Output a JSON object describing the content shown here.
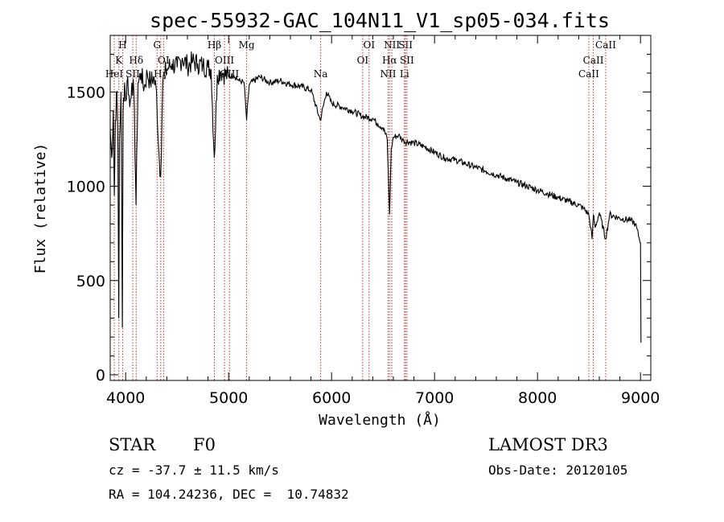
{
  "chart_data": {
    "type": "line",
    "title": "spec-55932-GAC_104N11_V1_sp05-034.fits",
    "xlabel": "Wavelength (Å)",
    "ylabel": "Flux (relative)",
    "xlim": [
      3850,
      9100
    ],
    "ylim": [
      -30,
      1800
    ],
    "x_ticks": [
      4000,
      5000,
      6000,
      7000,
      8000,
      9000
    ],
    "y_ticks": [
      0,
      500,
      1000,
      1500
    ],
    "series": [
      {
        "name": "flux",
        "x": [
          3850,
          3865,
          3880,
          3890,
          3900,
          3915,
          3925,
          3933,
          3940,
          3955,
          3968,
          3975,
          3990,
          4000,
          4020,
          4040,
          4060,
          4080,
          4101,
          4120,
          4150,
          4180,
          4210,
          4240,
          4270,
          4300,
          4320,
          4340,
          4360,
          4380,
          4400,
          4450,
          4500,
          4550,
          4600,
          4650,
          4700,
          4750,
          4800,
          4830,
          4861,
          4890,
          4920,
          4950,
          5000,
          5050,
          5100,
          5150,
          5175,
          5200,
          5300,
          5400,
          5500,
          5600,
          5700,
          5800,
          5890,
          5950,
          6000,
          6100,
          6200,
          6300,
          6400,
          6450,
          6500,
          6540,
          6563,
          6580,
          6600,
          6650,
          6700,
          6800,
          6900,
          7000,
          7100,
          7200,
          7300,
          7400,
          7500,
          7600,
          7700,
          7800,
          7900,
          8000,
          8100,
          8200,
          8300,
          8400,
          8450,
          8498,
          8530,
          8542,
          8560,
          8600,
          8662,
          8700,
          8800,
          8900,
          8950,
          9000,
          9005
        ],
        "y": [
          1300,
          1150,
          1400,
          950,
          1350,
          1500,
          1200,
          300,
          1250,
          1500,
          250,
          1400,
          1550,
          1450,
          1580,
          1420,
          1550,
          1500,
          900,
          1550,
          1600,
          1520,
          1600,
          1550,
          1580,
          1500,
          1200,
          1050,
          1550,
          1600,
          1620,
          1650,
          1630,
          1680,
          1640,
          1660,
          1650,
          1640,
          1630,
          1620,
          1150,
          1590,
          1610,
          1600,
          1580,
          1590,
          1560,
          1550,
          1350,
          1540,
          1580,
          1550,
          1560,
          1540,
          1530,
          1510,
          1350,
          1500,
          1440,
          1420,
          1400,
          1370,
          1360,
          1330,
          1310,
          1250,
          850,
          1200,
          1260,
          1270,
          1240,
          1230,
          1210,
          1180,
          1150,
          1140,
          1120,
          1100,
          1080,
          1060,
          1040,
          1020,
          1000,
          980,
          960,
          940,
          920,
          900,
          880,
          850,
          720,
          850,
          780,
          860,
          720,
          850,
          830,
          820,
          800,
          700,
          170
        ]
      }
    ],
    "lines": [
      {
        "name": "H",
        "wl": 3970,
        "row": 0
      },
      {
        "name": "K",
        "wl": 3934,
        "row": 1
      },
      {
        "name": "HeI",
        "wl": 3889,
        "row": 2
      },
      {
        "name": "Hδ",
        "wl": 4102,
        "row": 1
      },
      {
        "name": "SII",
        "wl": 4069,
        "row": 2
      },
      {
        "name": "G",
        "wl": 4305,
        "row": 0
      },
      {
        "name": "OI",
        "wl": 4368,
        "row": 1
      },
      {
        "name": "Hγ",
        "wl": 4341,
        "row": 2
      },
      {
        "name": "Hβ",
        "wl": 4862,
        "row": 0
      },
      {
        "name": "OIII",
        "wl": 4960,
        "row": 1
      },
      {
        "name": "OIII",
        "wl": 5008,
        "row": 2
      },
      {
        "name": "Mg",
        "wl": 5175,
        "row": 0
      },
      {
        "name": "Na",
        "wl": 5894,
        "row": 2
      },
      {
        "name": "OI",
        "wl": 6364,
        "row": 0
      },
      {
        "name": "OI",
        "wl": 6302,
        "row": 1
      },
      {
        "name": "NII",
        "wl": 6585,
        "row": 0
      },
      {
        "name": "Hα",
        "wl": 6563,
        "row": 1
      },
      {
        "name": "NII",
        "wl": 6549,
        "row": 2
      },
      {
        "name": "SII",
        "wl": 6718,
        "row": 0
      },
      {
        "name": "SII",
        "wl": 6732,
        "row": 1
      },
      {
        "name": "Li",
        "wl": 6708,
        "row": 2
      },
      {
        "name": "CaII",
        "wl": 8662,
        "row": 0
      },
      {
        "name": "CaII",
        "wl": 8542,
        "row": 1
      },
      {
        "name": "CaII",
        "wl": 8498,
        "row": 2
      }
    ],
    "colors": {
      "spectrum": "#000000",
      "line_marker": "#b02020",
      "axes": "#000000"
    }
  },
  "info": {
    "object_type": "STAR",
    "subclass": "F0",
    "survey": "LAMOST DR3",
    "redshift": "cz = -37.7 ± 11.5 km/s",
    "obs_date": "Obs-Date: 20120105",
    "coords": "RA = 104.24236, DEC =  10.74832"
  }
}
